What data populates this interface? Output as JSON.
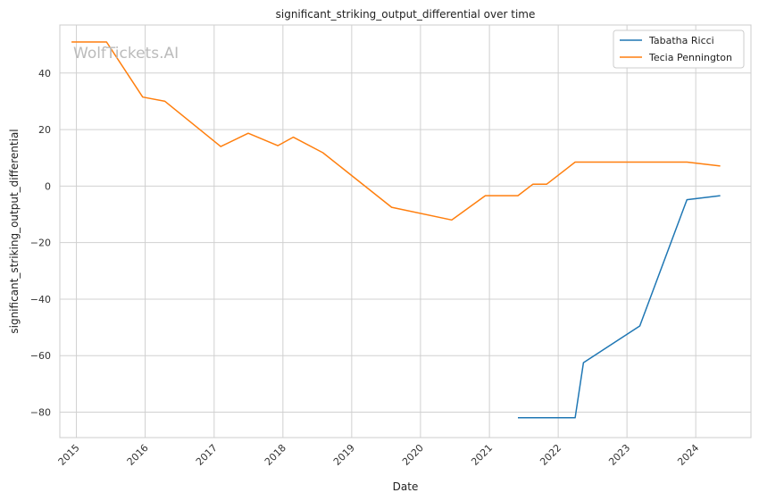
{
  "chart_data": {
    "type": "line",
    "title": "significant_striking_output_differential over time",
    "xlabel": "Date",
    "ylabel": "significant_striking_output_differential",
    "watermark": "WolfTickets.AI",
    "x_ticks": [
      "2015",
      "2016",
      "2017",
      "2018",
      "2019",
      "2020",
      "2021",
      "2022",
      "2023",
      "2024"
    ],
    "y_ticks": [
      "40",
      "20",
      "0",
      "−20",
      "−40",
      "−60",
      "−80"
    ],
    "y_tick_values": [
      40,
      20,
      0,
      -20,
      -40,
      -60,
      -80
    ],
    "xlim": [
      "2014-10-05",
      "2024-10-20"
    ],
    "ylim": [
      -89,
      57
    ],
    "grid": true,
    "legend_position": "top-right",
    "series": [
      {
        "name": "Tabatha Ricci",
        "color": "#1f77b4",
        "points": [
          {
            "x": "2021-06-01",
            "y": -82
          },
          {
            "x": "2022-04-01",
            "y": -82
          },
          {
            "x": "2022-05-15",
            "y": -62.5
          },
          {
            "x": "2023-03-10",
            "y": -49.5
          },
          {
            "x": "2023-11-15",
            "y": -4.8
          },
          {
            "x": "2024-05-10",
            "y": -3.4
          }
        ]
      },
      {
        "name": "Tecia Pennington",
        "color": "#ff7f0e",
        "points": [
          {
            "x": "2014-12-06",
            "y": 51
          },
          {
            "x": "2015-06-10",
            "y": 51
          },
          {
            "x": "2015-12-19",
            "y": 31.5
          },
          {
            "x": "2016-04-15",
            "y": 30
          },
          {
            "x": "2017-02-05",
            "y": 14
          },
          {
            "x": "2017-07-01",
            "y": 18.7
          },
          {
            "x": "2017-12-05",
            "y": 14.3
          },
          {
            "x": "2018-02-25",
            "y": 17.3
          },
          {
            "x": "2018-08-01",
            "y": 11.8
          },
          {
            "x": "2019-08-01",
            "y": -7.5
          },
          {
            "x": "2020-06-15",
            "y": -12
          },
          {
            "x": "2020-12-10",
            "y": -3.4
          },
          {
            "x": "2021-06-01",
            "y": -3.4
          },
          {
            "x": "2021-08-20",
            "y": 0.7
          },
          {
            "x": "2021-11-01",
            "y": 0.7
          },
          {
            "x": "2022-04-01",
            "y": 8.5
          },
          {
            "x": "2023-11-15",
            "y": 8.5
          },
          {
            "x": "2024-05-10",
            "y": 7.1
          }
        ]
      }
    ]
  }
}
